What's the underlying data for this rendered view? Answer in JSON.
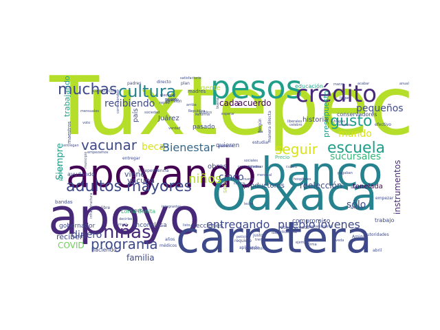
{
  "colors": {
    "lime": "#b5de2b",
    "green": "#6ece58",
    "teal": "#1f9e89",
    "cyan": "#26828e",
    "blue": "#31688e",
    "indigo": "#3e4989",
    "purple": "#482878",
    "dark": "#440154",
    "lightgreen": "#35b779",
    "yellow": "#d8e219"
  },
  "words": [
    {
      "text": "Tuxtepec",
      "color": "lime"
    },
    {
      "text": "apoyo",
      "color": "purple"
    },
    {
      "text": "apoyando",
      "color": "dark"
    },
    {
      "text": "banco",
      "color": "cyan"
    },
    {
      "text": "Oaxaca",
      "color": "cyan"
    },
    {
      "text": "carretera",
      "color": "indigo"
    },
    {
      "text": "pesos",
      "color": "teal"
    },
    {
      "text": "crédito",
      "color": "purple"
    },
    {
      "text": "cultura",
      "color": "cyan"
    },
    {
      "text": "muchas",
      "color": "indigo"
    },
    {
      "text": "adultos mayores",
      "color": "indigo"
    },
    {
      "text": "vacunar",
      "color": "indigo"
    },
    {
      "text": "programa",
      "color": "indigo"
    },
    {
      "text": "niñas",
      "color": "purple"
    },
    {
      "text": "escuela",
      "color": "teal"
    },
    {
      "text": "seguir",
      "color": "yellow"
    },
    {
      "text": "gusto",
      "color": "teal"
    },
    {
      "text": "niños",
      "color": "lime"
    },
    {
      "text": "Bienestar",
      "color": "blue"
    },
    {
      "text": "entregando",
      "color": "indigo"
    },
    {
      "text": "pueblo",
      "color": "indigo"
    },
    {
      "text": "jóvenes",
      "color": "indigo"
    },
    {
      "text": "sucursales",
      "color": "lightgreen"
    },
    {
      "text": "recibiendo",
      "color": "indigo"
    },
    {
      "text": "beca",
      "color": "yellow"
    },
    {
      "text": "dinero",
      "color": "indigo"
    },
    {
      "text": "cinco",
      "color": "indigo"
    },
    {
      "text": "sólo",
      "color": "indigo"
    },
    {
      "text": "mundo",
      "color": "yellow"
    },
    {
      "text": "pequeños",
      "color": "indigo"
    },
    {
      "text": "instrumentos",
      "color": "purple"
    },
    {
      "text": "presupuesto",
      "color": "teal"
    },
    {
      "text": "familia",
      "color": "indigo"
    },
    {
      "text": "Siempre",
      "color": "teal"
    },
    {
      "text": "trabajando",
      "color": "teal"
    },
    {
      "text": "COVID",
      "color": "green"
    },
    {
      "text": "reciben",
      "color": "indigo"
    },
    {
      "text": "cada",
      "color": "dark"
    },
    {
      "text": "acuerdo",
      "color": "dark"
    },
    {
      "text": "reelección",
      "color": "indigo"
    },
    {
      "text": "tonelada",
      "color": "dark"
    },
    {
      "text": "vacuna",
      "color": "indigo"
    },
    {
      "text": "viene",
      "color": "indigo"
    },
    {
      "text": "gente",
      "color": "lime"
    },
    {
      "text": "Juárez",
      "color": "indigo"
    },
    {
      "text": "país",
      "color": "indigo"
    },
    {
      "text": "quieren",
      "color": "indigo"
    },
    {
      "text": "obras",
      "color": "indigo"
    },
    {
      "text": "pasado",
      "color": "indigo"
    },
    {
      "text": "historia",
      "color": "indigo"
    },
    {
      "text": "productores",
      "color": "indigo"
    },
    {
      "text": "compromiso",
      "color": "indigo"
    },
    {
      "text": "elecciones",
      "color": "indigo"
    },
    {
      "text": "inconclusa",
      "color": "indigo"
    },
    {
      "text": "gobernador",
      "color": "indigo"
    },
    {
      "text": "haciendo",
      "color": "indigo"
    },
    {
      "text": "ayudando",
      "color": "indigo"
    },
    {
      "text": "educación",
      "color": "teal"
    },
    {
      "text": "conservadores",
      "color": "indigo"
    },
    {
      "text": "seis",
      "color": "lime"
    },
    {
      "text": "trabajo",
      "color": "indigo"
    },
    {
      "text": "Loma Bonita",
      "color": "lightgreen"
    },
    {
      "text": "madres",
      "color": "indigo"
    },
    {
      "text": "autoridades",
      "color": "indigo"
    },
    {
      "text": "Amigas",
      "color": "indigo"
    },
    {
      "text": "abril",
      "color": "indigo"
    },
    {
      "text": "maestros",
      "color": "indigo"
    },
    {
      "text": "primero",
      "color": "teal"
    },
    {
      "text": "bandas",
      "color": "indigo"
    },
    {
      "text": "entregar",
      "color": "indigo"
    },
    {
      "text": "Independencia",
      "color": "indigo"
    },
    {
      "text": "pandemia",
      "color": "indigo"
    },
    {
      "text": "mismo",
      "color": "indigo"
    },
    {
      "text": "estudiar",
      "color": "indigo"
    },
    {
      "text": "efectivo",
      "color": "indigo"
    },
    {
      "text": "empezar",
      "color": "indigo"
    },
    {
      "text": "directo",
      "color": "indigo"
    },
    {
      "text": "plan",
      "color": "indigo"
    },
    {
      "text": "satisfactorio",
      "color": "indigo"
    },
    {
      "text": "padres",
      "color": "indigo"
    },
    {
      "text": "construcción",
      "color": "indigo"
    },
    {
      "text": "puerto",
      "color": "indigo"
    },
    {
      "text": "pensión",
      "color": "indigo"
    },
    {
      "text": "manera directa",
      "color": "indigo"
    },
    {
      "text": "ningún",
      "color": "indigo"
    },
    {
      "text": "Precio",
      "color": "lightgreen"
    },
    {
      "text": "Construyendo",
      "color": "indigo"
    },
    {
      "text": "libre",
      "color": "indigo"
    },
    {
      "text": "quitan",
      "color": "indigo"
    },
    {
      "text": "años",
      "color": "indigo"
    },
    {
      "text": "médicos",
      "color": "indigo"
    },
    {
      "text": "justo",
      "color": "indigo"
    },
    {
      "text": "requiere",
      "color": "indigo"
    },
    {
      "text": "aplicando",
      "color": "indigo"
    },
    {
      "text": "adelante",
      "color": "indigo"
    },
    {
      "text": "marzo",
      "color": "indigo"
    },
    {
      "text": "amigos",
      "color": "indigo"
    },
    {
      "text": "anual",
      "color": "indigo"
    },
    {
      "text": "tercera",
      "color": "indigo"
    },
    {
      "text": "Chiapas",
      "color": "indigo"
    },
    {
      "text": "llegar",
      "color": "indigo"
    },
    {
      "text": "repito",
      "color": "indigo"
    },
    {
      "text": "República",
      "color": "indigo"
    },
    {
      "text": "Reforma",
      "color": "indigo"
    },
    {
      "text": "sociedad",
      "color": "indigo"
    },
    {
      "text": "verdad",
      "color": "indigo"
    },
    {
      "text": "derecho",
      "color": "indigo"
    },
    {
      "text": "gran",
      "color": "indigo"
    },
    {
      "text": "arriba",
      "color": "indigo"
    },
    {
      "text": "esperar",
      "color": "indigo"
    },
    {
      "text": "público",
      "color": "indigo"
    },
    {
      "text": "liberales",
      "color": "indigo"
    },
    {
      "text": "celebro",
      "color": "indigo"
    },
    {
      "text": "dar",
      "color": "indigo"
    },
    {
      "text": "trenes",
      "color": "indigo"
    },
    {
      "text": "petición",
      "color": "indigo"
    },
    {
      "text": "producción",
      "color": "indigo"
    },
    {
      "text": "ejemplo",
      "color": "indigo"
    },
    {
      "text": "forma",
      "color": "indigo"
    },
    {
      "text": "veda",
      "color": "indigo"
    },
    {
      "text": "mantenimiento",
      "color": "indigo"
    },
    {
      "text": "integrantes",
      "color": "indigo"
    },
    {
      "text": "nivel",
      "color": "indigo"
    },
    {
      "text": "voto",
      "color": "indigo"
    },
    {
      "text": "mensuales",
      "color": "indigo"
    },
    {
      "text": "municipio",
      "color": "indigo"
    },
    {
      "text": "infraestructura",
      "color": "indigo"
    },
    {
      "text": "empezamos",
      "color": "indigo"
    },
    {
      "text": "decirles",
      "color": "indigo"
    },
    {
      "text": "electoral",
      "color": "indigo"
    },
    {
      "text": "corresponde",
      "color": "indigo"
    },
    {
      "text": "entregan",
      "color": "indigo"
    },
    {
      "text": "buena",
      "color": "indigo"
    },
    {
      "text": "cuatro",
      "color": "indigo"
    },
    {
      "text": "acabar",
      "color": "indigo"
    },
    {
      "text": "pagaban",
      "color": "indigo"
    },
    {
      "text": "ahorita",
      "color": "indigo"
    },
    {
      "text": "listo",
      "color": "indigo"
    },
    {
      "text": "leche",
      "color": "indigo"
    },
    {
      "text": "ola",
      "color": "indigo"
    },
    {
      "text": "sociales",
      "color": "indigo"
    },
    {
      "text": "comunidades",
      "color": "indigo"
    },
    {
      "text": "terminar",
      "color": "indigo"
    },
    {
      "text": "hospitales",
      "color": "indigo"
    },
    {
      "text": "mensual",
      "color": "indigo"
    },
    {
      "text": "nuevo",
      "color": "indigo"
    },
    {
      "text": "coloca",
      "color": "indigo"
    }
  ]
}
